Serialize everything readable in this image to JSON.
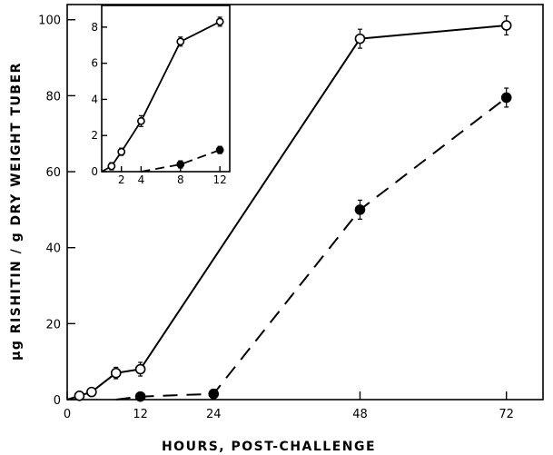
{
  "chart_data": [
    {
      "type": "line",
      "title": "",
      "xlabel": "HOURS, POST-CHALLENGE",
      "ylabel": "µg RISHITIN / g DRY WEIGHT TUBER",
      "xlim": [
        0,
        78
      ],
      "ylim": [
        0,
        104
      ],
      "xticks": [
        0,
        12,
        24,
        48,
        72
      ],
      "yticks": [
        0,
        20,
        40,
        60,
        80,
        100
      ],
      "grid": false,
      "legend": "none",
      "series": [
        {
          "marker": "open-circle",
          "line": "solid",
          "x": [
            0,
            2,
            4,
            8,
            12,
            48,
            72
          ],
          "y": [
            0,
            1,
            2,
            7,
            8,
            95,
            98.5
          ],
          "err": [
            0,
            0.8,
            1,
            1.5,
            1.8,
            2.5,
            2.5
          ]
        },
        {
          "marker": "filled-circle",
          "line": "dashed",
          "x": [
            8,
            12,
            24,
            48,
            72
          ],
          "y": [
            0,
            0.8,
            1.5,
            50,
            79.5
          ],
          "err": [
            0,
            0.8,
            1.2,
            2.5,
            2.5
          ]
        }
      ]
    },
    {
      "type": "line",
      "title": "",
      "xlabel": "",
      "ylabel": "",
      "xlim": [
        0,
        13
      ],
      "ylim": [
        0,
        9.2
      ],
      "xticks": [
        2,
        4,
        8,
        12
      ],
      "yticks": [
        0,
        2,
        4,
        6,
        8
      ],
      "grid": false,
      "legend": "none",
      "series": [
        {
          "marker": "open-circle",
          "line": "solid",
          "x": [
            0,
            1,
            2,
            4,
            8,
            12
          ],
          "y": [
            0,
            0.3,
            1.1,
            2.8,
            7.2,
            8.3
          ],
          "err": [
            0,
            0.2,
            0.2,
            0.3,
            0.25,
            0.25
          ]
        },
        {
          "marker": "filled-circle",
          "line": "dashed",
          "x": [
            4,
            8,
            12
          ],
          "y": [
            0,
            0.4,
            1.2
          ],
          "err": [
            0,
            0.2,
            0.2
          ]
        }
      ]
    }
  ]
}
